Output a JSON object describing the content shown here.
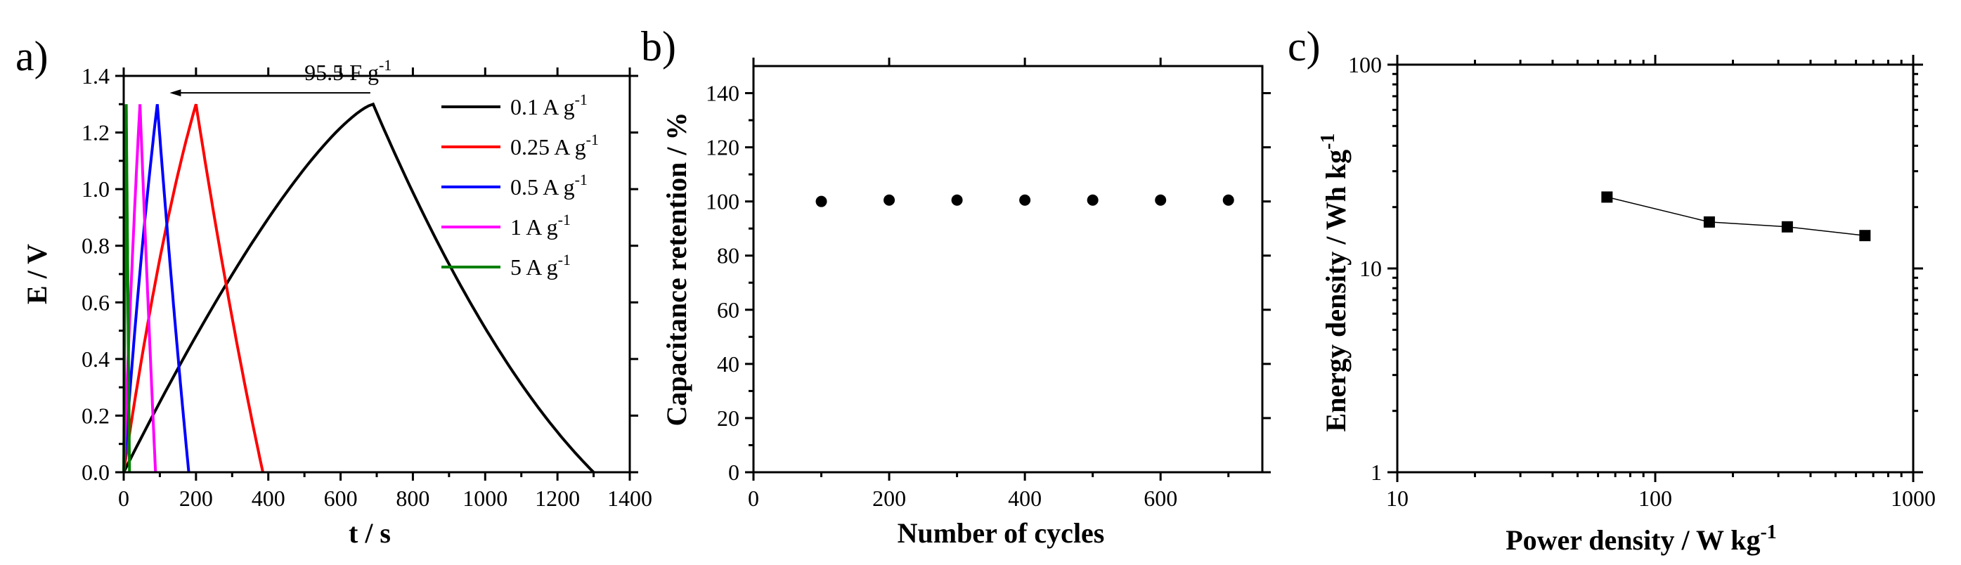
{
  "chart_data": [
    {
      "type": "line",
      "panel_label": "a)",
      "xlabel": "t / s",
      "ylabel": "E / V",
      "xlim": [
        0,
        1400
      ],
      "ylim": [
        0,
        1.4
      ],
      "xticks": [
        0,
        200,
        400,
        600,
        800,
        1000,
        1200,
        1400
      ],
      "yticks": [
        0.0,
        0.2,
        0.4,
        0.6,
        0.8,
        1.0,
        1.2,
        1.4
      ],
      "xtick_labels": [
        "0",
        "200",
        "400",
        "600",
        "800",
        "1000",
        "1200",
        "1400"
      ],
      "ytick_labels": [
        "0.0",
        "0.2",
        "0.4",
        "0.6",
        "0.8",
        "1.0",
        "1.2",
        "1.4"
      ],
      "legend_position": "top-right",
      "annotation": {
        "text": "95.5 F g",
        "sup": "-1",
        "arrow_from": [
          690,
          1.34
        ],
        "arrow_to": [
          100,
          1.34
        ]
      },
      "series": [
        {
          "name": "0.1 A g",
          "sup": "-1",
          "color": "#000000",
          "peak_t": 690,
          "end_t": 1300,
          "peak_e": 1.3,
          "charge_bow": -0.12,
          "discharge_bow": -0.1
        },
        {
          "name": "0.25 A g",
          "sup": "-1",
          "color": "#ff0000",
          "peak_t": 200,
          "end_t": 385,
          "peak_e": 1.3,
          "charge_bow": -0.08,
          "discharge_bow": -0.04
        },
        {
          "name": "0.5 A g",
          "sup": "-1",
          "color": "#0000ff",
          "peak_t": 93,
          "end_t": 180,
          "peak_e": 1.3,
          "charge_bow": -0.06,
          "discharge_bow": -0.03
        },
        {
          "name": "1 A g",
          "sup": "-1",
          "color": "#ff00ff",
          "peak_t": 45,
          "end_t": 88,
          "peak_e": 1.3,
          "charge_bow": -0.05,
          "discharge_bow": -0.02
        },
        {
          "name": "5 A g",
          "sup": "-1",
          "color": "#008000",
          "peak_t": 7,
          "end_t": 16,
          "peak_e": 1.3,
          "charge_bow": 0,
          "discharge_bow": 0
        }
      ]
    },
    {
      "type": "scatter",
      "panel_label": "b)",
      "xlabel": "Number of cycles",
      "ylabel": "Capacitance retention / %",
      "xlim": [
        0,
        750
      ],
      "ylim": [
        0,
        150
      ],
      "xticks": [
        0,
        200,
        400,
        600
      ],
      "yticks": [
        0,
        20,
        40,
        60,
        80,
        100,
        120,
        140
      ],
      "xtick_labels": [
        "0",
        "200",
        "400",
        "600"
      ],
      "ytick_labels": [
        "0",
        "20",
        "40",
        "60",
        "80",
        "100",
        "120",
        "140"
      ],
      "x": [
        100,
        200,
        300,
        400,
        500,
        600,
        700
      ],
      "y": [
        100,
        100.5,
        100.5,
        100.5,
        100.5,
        100.5,
        100.5
      ]
    },
    {
      "type": "line",
      "panel_label": "c)",
      "xlabel": "Power density / W kg",
      "xlabel_sup": "-1",
      "ylabel": "Energy density / Wh kg",
      "ylabel_sup": "-1",
      "xscale": "log",
      "yscale": "log",
      "xlim": [
        10,
        1000
      ],
      "ylim": [
        1,
        100
      ],
      "xticks": [
        10,
        100,
        1000
      ],
      "yticks": [
        1,
        10,
        100
      ],
      "xtick_labels": [
        "10",
        "100",
        "1000"
      ],
      "ytick_labels": [
        "1",
        "10",
        "100"
      ],
      "x": [
        65,
        162,
        325,
        650
      ],
      "y": [
        22.4,
        16.9,
        16.0,
        14.5
      ]
    }
  ]
}
